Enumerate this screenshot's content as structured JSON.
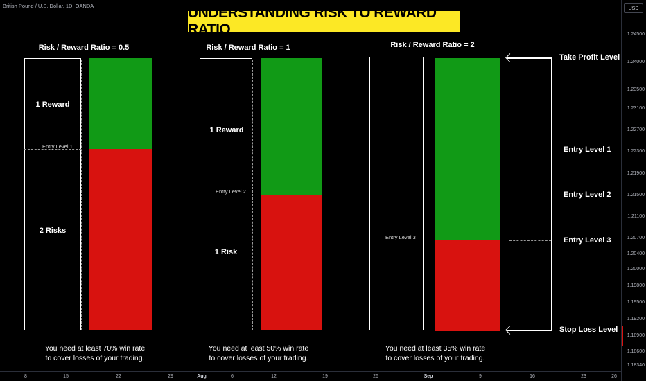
{
  "symbol_line": "British Pound / U.S. Dollar, 1D, OANDA",
  "title": "UNDERSTANDING RISK TO REWARD RATIO",
  "panels": [
    {
      "ratio_label": "Risk / Reward Ratio = 0.5",
      "entry_label": "Entry Level 1",
      "reward_label": "1 Reward",
      "risk_label": "2 Risks",
      "caption_line1": "You need at least 70% win rate",
      "caption_line2": "to cover losses of your trading.",
      "win_rate_needed_pct": 70
    },
    {
      "ratio_label": "Risk / Reward Ratio = 1",
      "entry_label": "Entry Level 2",
      "reward_label": "1 Reward",
      "risk_label": "1 Risk",
      "caption_line1": "You need at least 50% win rate",
      "caption_line2": "to cover losses of your trading.",
      "win_rate_needed_pct": 50
    },
    {
      "ratio_label": "Risk / Reward Ratio = 2",
      "entry_label": "Entry Level 3",
      "caption_line1": "You need at least 35% win rate",
      "caption_line2": "to cover losses of your trading.",
      "win_rate_needed_pct": 35
    }
  ],
  "right_labels": {
    "take_profit": "Take Profit Level",
    "entry1": "Entry Level 1",
    "entry2": "Entry Level 2",
    "entry3": "Entry Level 3",
    "stop_loss": "Stop Loss Level"
  },
  "price_axis": {
    "currency_button": "USD",
    "ticks": [
      "1.24500",
      "1.24000",
      "1.23500",
      "1.23100",
      "1.22700",
      "1.22300",
      "1.21900",
      "1.21500",
      "1.21100",
      "1.20700",
      "1.20400",
      "1.20000",
      "1.19800",
      "1.19500",
      "1.19200",
      "1.18900",
      "1.18600",
      "1.18340"
    ]
  },
  "time_axis": {
    "ticks": [
      "8",
      "15",
      "22",
      "29",
      "Aug",
      "6",
      "12",
      "19",
      "26",
      "Sep",
      "9",
      "16",
      "23",
      "26"
    ]
  },
  "colors": {
    "reward": "#119a16",
    "risk": "#d8120f",
    "title_bg": "#fce825"
  }
}
